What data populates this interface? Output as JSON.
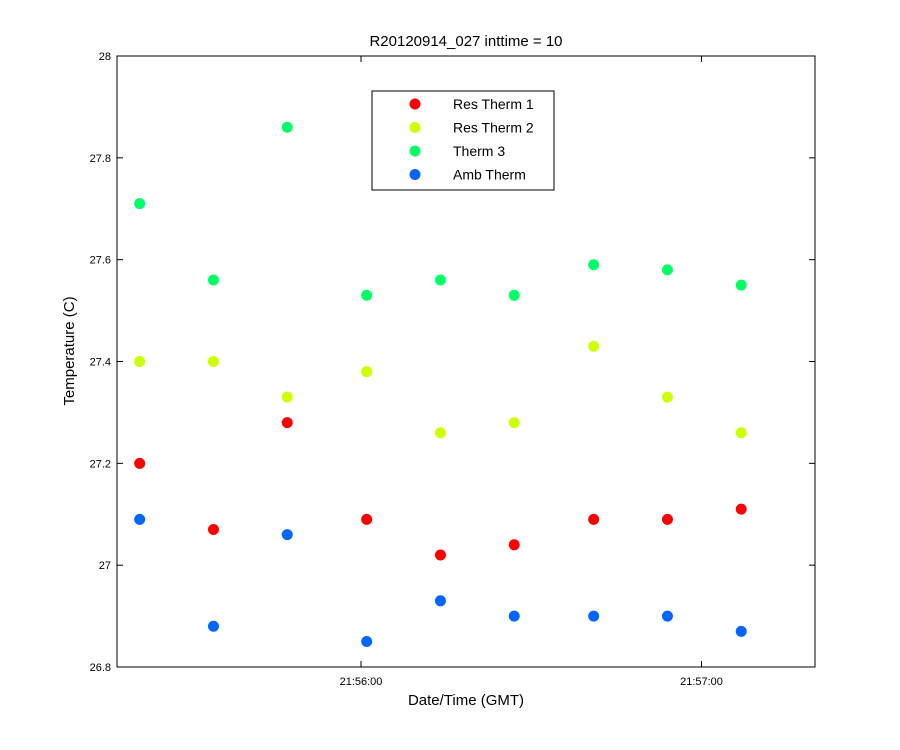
{
  "chart_data": {
    "type": "scatter",
    "title": "R20120914_027 inttime = 10",
    "xlabel": "Date/Time (GMT)",
    "ylabel": "Temperature (C)",
    "x_unit": "time (GMT)",
    "xlim": [
      "21:55:17",
      "21:57:20"
    ],
    "ylim": [
      26.8,
      28.0
    ],
    "xticks": [
      {
        "value": "21:56:00",
        "label": "21:56:00"
      },
      {
        "value": "21:57:00",
        "label": "21:57:00"
      }
    ],
    "yticks": [
      {
        "value": 26.8,
        "label": "26.8"
      },
      {
        "value": 27.0,
        "label": "27"
      },
      {
        "value": 27.2,
        "label": "27.2"
      },
      {
        "value": 27.4,
        "label": "27.4"
      },
      {
        "value": 27.6,
        "label": "27.6"
      },
      {
        "value": 27.8,
        "label": "27.8"
      },
      {
        "value": 28.0,
        "label": "28"
      }
    ],
    "grid": false,
    "legend_position": "top-center",
    "x": [
      "21:55:21",
      "21:55:34",
      "21:55:47",
      "21:56:01",
      "21:56:14",
      "21:56:27",
      "21:56:41",
      "21:56:54",
      "21:57:07"
    ],
    "series": [
      {
        "name": "Res Therm 1",
        "color": "#ff0000",
        "values": [
          27.2,
          27.07,
          27.28,
          27.09,
          27.02,
          27.04,
          27.09,
          27.09,
          27.11
        ]
      },
      {
        "name": "Res Therm 2",
        "color": "#ccff00",
        "values": [
          27.4,
          27.4,
          27.33,
          27.38,
          27.26,
          27.28,
          27.43,
          27.33,
          27.26
        ]
      },
      {
        "name": "Therm 3",
        "color": "#00ff66",
        "values": [
          27.71,
          27.56,
          27.86,
          27.53,
          27.56,
          27.53,
          27.59,
          27.58,
          27.55
        ]
      },
      {
        "name": "Amb Therm",
        "color": "#0066ff",
        "values": [
          27.09,
          26.88,
          27.06,
          26.85,
          26.93,
          26.9,
          26.9,
          26.9,
          26.87
        ]
      }
    ]
  }
}
